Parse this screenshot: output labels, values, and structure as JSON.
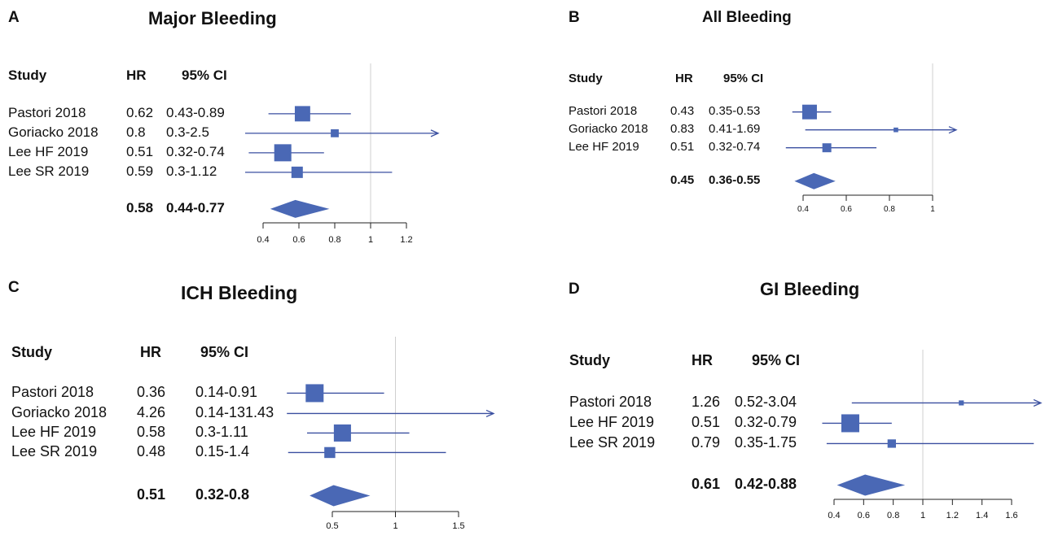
{
  "colors": {
    "marker": "#4a68b5",
    "line": "#3a4fa0",
    "ref": "#cfcfcf",
    "axis": "#222222"
  },
  "headers": {
    "study": "Study",
    "hr": "HR",
    "ci": "95% CI"
  },
  "panels": [
    {
      "letter": "A",
      "title": "Major Bleeding",
      "chart_data": {
        "type": "forest",
        "xlim": [
          0.4,
          1.2
        ],
        "ref_line": 1,
        "ticks": [
          "0.4",
          "0.6",
          "0.8",
          "1",
          "1.2"
        ],
        "studies": [
          {
            "study": "Pastori 2018",
            "hr": "0.62",
            "ci": "0.43-0.89",
            "est": 0.62,
            "lo": 0.43,
            "hi": 0.89,
            "weight": 0.85
          },
          {
            "study": "Goriacko 2018",
            "hr": "0.8",
            "ci": "0.3-2.5",
            "est": 0.8,
            "lo": 0.3,
            "hi": 2.5,
            "weight": 0.2
          },
          {
            "study": "Lee HF 2019",
            "hr": "0.51",
            "ci": "0.32-0.74",
            "est": 0.51,
            "lo": 0.32,
            "hi": 0.74,
            "weight": 1.0
          },
          {
            "study": "Lee SR 2019",
            "hr": "0.59",
            "ci": "0.3-1.12",
            "est": 0.59,
            "lo": 0.3,
            "hi": 1.12,
            "weight": 0.5
          }
        ],
        "pooled": {
          "hr": "0.58",
          "ci": "0.44-0.77",
          "est": 0.58,
          "lo": 0.44,
          "hi": 0.77
        }
      }
    },
    {
      "letter": "B",
      "title": "All Bleeding",
      "chart_data": {
        "type": "forest",
        "xlim": [
          0.4,
          1
        ],
        "ref_line": 1,
        "ticks": [
          "0.4",
          "0.6",
          "0.8",
          "1"
        ],
        "studies": [
          {
            "study": "Pastori 2018",
            "hr": "0.43",
            "ci": "0.35-0.53",
            "est": 0.43,
            "lo": 0.35,
            "hi": 0.53,
            "weight": 1.0
          },
          {
            "study": "Goriacko 2018",
            "hr": "0.83",
            "ci": "0.41-1.69",
            "est": 0.83,
            "lo": 0.41,
            "hi": 1.69,
            "weight": 0.12
          },
          {
            "study": "Lee HF 2019",
            "hr": "0.51",
            "ci": "0.32-0.74",
            "est": 0.51,
            "lo": 0.32,
            "hi": 0.74,
            "weight": 0.5
          }
        ],
        "pooled": {
          "hr": "0.45",
          "ci": "0.36-0.55",
          "est": 0.45,
          "lo": 0.36,
          "hi": 0.55
        }
      }
    },
    {
      "letter": "C",
      "title": "ICH Bleeding",
      "chart_data": {
        "type": "forest",
        "xlim": [
          0.5,
          1.5
        ],
        "ref_line": 1,
        "ticks": [
          "0.5",
          "1",
          "1.5"
        ],
        "studies": [
          {
            "study": "Pastori 2018",
            "hr": "0.36",
            "ci": "0.14-0.91",
            "est": 0.36,
            "lo": 0.14,
            "hi": 0.91,
            "weight": 1.0
          },
          {
            "study": "Goriacko 2018",
            "hr": "4.26",
            "ci": "0.14-131.43",
            "est": 4.26,
            "lo": 0.14,
            "hi": 131.43,
            "weight": 0.0
          },
          {
            "study": "Lee HF 2019",
            "hr": "0.58",
            "ci": "0.3-1.11",
            "est": 0.58,
            "lo": 0.3,
            "hi": 1.11,
            "weight": 0.95
          },
          {
            "study": "Lee SR 2019",
            "hr": "0.48",
            "ci": "0.15-1.4",
            "est": 0.48,
            "lo": 0.15,
            "hi": 1.4,
            "weight": 0.55
          }
        ],
        "pooled": {
          "hr": "0.51",
          "ci": "0.32-0.8",
          "est": 0.51,
          "lo": 0.32,
          "hi": 0.8
        }
      }
    },
    {
      "letter": "D",
      "title": "GI Bleeding",
      "chart_data": {
        "type": "forest",
        "xlim": [
          0.4,
          1.6
        ],
        "ref_line": 1,
        "ticks": [
          "0.4",
          "0.6",
          "0.8",
          "1",
          "1.2",
          "1.4",
          "1.6"
        ],
        "studies": [
          {
            "study": "Pastori 2018",
            "hr": "1.26",
            "ci": "0.52-3.04",
            "est": 1.26,
            "lo": 0.52,
            "hi": 3.04,
            "weight": 0.12
          },
          {
            "study": "Lee HF 2019",
            "hr": "0.51",
            "ci": "0.32-0.79",
            "est": 0.51,
            "lo": 0.32,
            "hi": 0.79,
            "weight": 1.0
          },
          {
            "study": "Lee SR 2019",
            "hr": "0.79",
            "ci": "0.35-1.75",
            "est": 0.79,
            "lo": 0.35,
            "hi": 1.75,
            "weight": 0.35
          }
        ],
        "pooled": {
          "hr": "0.61",
          "ci": "0.42-0.88",
          "est": 0.61,
          "lo": 0.42,
          "hi": 0.88
        }
      }
    }
  ]
}
